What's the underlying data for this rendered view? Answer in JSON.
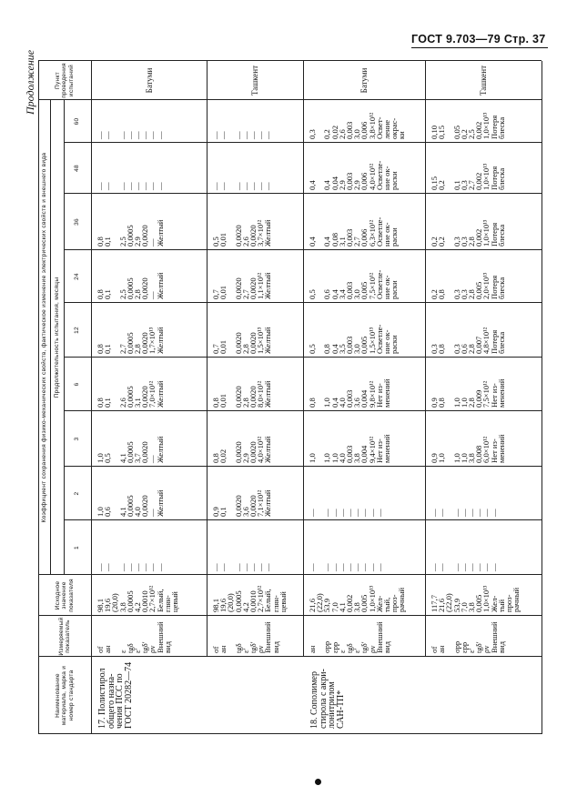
{
  "running_head": "ГОСТ 9.703—79  Стр. 37",
  "continuation": "Продолжение",
  "header": {
    "name": "Наименование материала, марка и номер стандарта",
    "indicator": "Измеряемый показатель",
    "initial": "Исходное значение показателя",
    "coefficient": "Коэффициент сохранения физико-механических свойств, фактическое изменение электрических свойств и внешнего вида",
    "duration": "Продолжительность испытания, месяцы",
    "months": [
      "1",
      "2",
      "3",
      "6",
      "12",
      "24",
      "36",
      "48",
      "60"
    ],
    "site": "Пункт проведения испытаний"
  },
  "rows": [
    {
      "name": "17. Полистирол\nобщего назна-\nчения ПСС по\nГОСТ 20282—74",
      "indicators": "σf\naн\n\nε\ntgδ\nε′\ntgδ′\nρv\nВнешний\nвид",
      "initial": "98,1\n19,6\n(20,0)\n3,8\n0,0005\n4,2\n0,0010\n2,7×10¹²\nБелый,\nглян-\nцевый",
      "values": [
        "—\n—\n\n—\n—\n—\n—\n—\n—",
        "1,0\n0,6\n\n4,1\n0,0005\n4,0\n0,0020\n—\nЖелтый",
        "1,0\n0,5\n\n4,1\n0,0005\n3,7\n0,0020\n—\nЖелтый",
        "0,8\n0,1\n\n2,6\n0,0005\n3,1\n0,0020\n7,0×10¹²\nЖелтый",
        "0,8\n0,1\n\n2,7\n0,0005\n2,8\n0,0020\n1,7×10¹³\nЖелтый",
        "0,8\n0,1\n\n2,5\n0,0005\n2,8\n0,0020\n—\nЖелтый",
        "0,8\n0,1\n\n2,5\n0,0005\n2,9\n0,0020\n—\nЖелтый",
        "—\n—\n\n—\n—\n—\n—\n—\n—",
        "—\n—\n\n—\n—\n—\n—\n—\n—"
      ],
      "site": "Батуми"
    },
    {
      "name": "",
      "indicators": "σf\naн\n\ntgδ\nε′\ntgδ′\nρv\nВнешний\nвид",
      "initial": "98,1\n19,6\n(20,0)\n0,0005\n4,2\n0,0010\n2,7×10¹²\nБелый,\nглян-\nцевый",
      "values": [
        "—\n—\n\n—\n—\n—\n—\n—",
        "0,9\n0,1\n\n0,0020\n3,6\n0,0020\n7,1×10¹²\nЖелтый",
        "0,8\n0,02\n\n0,0020\n2,9\n0,0020\n4,0×10¹²\nЖелтый",
        "0,8\n0,01\n\n0,0020\n2,8\n0,0020\n8,0×10¹²\nЖелтый",
        "0,7\n0,01\n\n0,0020\n2,8\n0,0020\n1,5×10¹³\nЖелтый",
        "0,7\n0,01\n\n0,0020\n2,7\n0,0020\n1,1×10¹²\nЖелтый",
        "0,5\n0,01\n\n0,0020\n2,6\n0,0020\n3,7×10¹²\nЖелтый",
        "—\n—\n\n—\n—\n—\n—\n—",
        "—\n—\n\n—\n—\n—\n—\n—"
      ],
      "site": "Ташкент"
    },
    {
      "name": "18. Сополимер\nстирола с акри-\nлонитрилом\nСАН-ТП*",
      "indicators": "aн\n\nσрр\nεрр\nε\ntgδ\nε′\ntgδ′\nρv\nВнешний\nвид",
      "initial": "21,6\n(22,0)\n53,9\n7,0\n4,1\n0,002\n3,8\n0,005\n1,0×10¹³\nЖел-\nтый,\nпроз-\nрачный",
      "values": [
        "—\n\n—\n—\n—\n—\n—\n—\n—\n—",
        "—\n\n—\n—\n—\n—\n—\n—\n—\n—",
        "1,0\n\n1,0\n1,0\n4,0\n0,003\n3,8\n0,004\n9,4×10¹²\nНет из-\nменений",
        "0,8\n\n1,0\n0,4\n4,0\n0,003\n3,6\n0,004\n9,8×10¹²\nНет из-\nменений",
        "0,5\n\n0,8\n0,4\n3,5\n0,003\n3,0\n0,005\n1,5×10¹³\nОсветле-\nние ок-\nраски",
        "0,5\n\n0,6\n0,4\n3,4\n0,003\n3,0\n0,005\n7,5×10¹²\nОсветле-\nние ок-\nраски",
        "0,4\n\n0,4\n0,08\n3,1\n0,003\n2,7\n0,006\n6,3×10¹²\nОсветле-\nние ок-\nраски",
        "0,4\n\n0,4\n0,04\n2,9\n0,003\n2,9\n0,006\n4,0×10¹²\nОсветле-\nние ок-\nраски",
        "0,3\n\n0,2\n0,02\n2,6\n0,003\n3,0\n0,006\n3,8×10¹²\nОсвет-\nление\nокрас-\nки"
      ],
      "site": "Батуми"
    },
    {
      "name": "",
      "indicators": "σf\naн\n\nσрр\nεрр\nε′\ntgδ′\nρv\nВнешний\nвид",
      "initial": "117,7\n21,6\n(22,0)\n53,9\n7,0\n3,8\n0,005\n1,0×10¹³\nЖел-\nтый\nпроз-\nрачный",
      "values": [
        "—\n—\n\n—\n—\n—\n—\n—\n—",
        "—\n—\n\n—\n—\n—\n—\n—\n—",
        "0,9\n1,0\n\n1,0\n1,0\n3,8\n0,008\n6,0×10¹²\nНет из-\nменений",
        "0,9\n0,8\n\n1,0\n1,0\n2,8\n0,009\n7,5×10¹²\nНет из-\nменений",
        "0,3\n0,8\n\n0,3\n0,6\n2,8\n0,007\n4,8×10¹²\nПотеря\nблеска",
        "0,2\n0,8\n\n0,3\n0,3\n2,8\n0,005\n2,0×10¹³\nПотеря\nблеска",
        "0,2\n0,2\n\n0,3\n0,3\n2,8\n0,002\n1,0×10¹³\nПотеря\nблеска",
        "0,15\n0,2\n\n0,1\n0,3\n2,7\n0,002\n1,0×10¹³\nПотеря\nблеска",
        "0,10\n0,15\n\n0,05\n0,2\n2,5\n0,002\n1,0×10¹³\nПотеря\nблеска"
      ],
      "site": "Ташкент"
    }
  ]
}
